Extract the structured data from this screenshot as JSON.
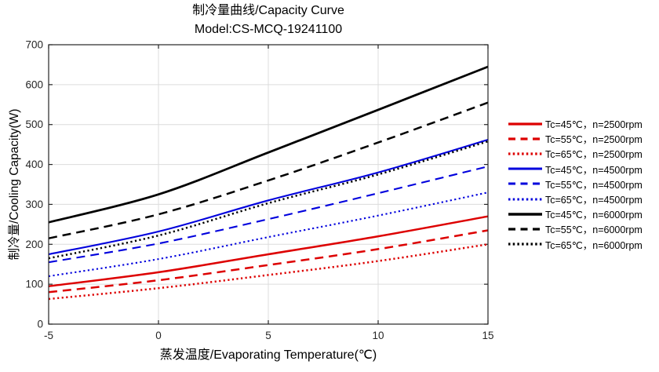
{
  "title": {
    "line1": "制冷量曲线/Capacity Curve",
    "line2": "Model:CS-MCQ-19241100"
  },
  "chart_data": {
    "type": "line",
    "title": "制冷量曲线/Capacity Curve",
    "subtitle": "Model:CS-MCQ-19241100",
    "xlabel": "蒸发温度/Evaporating Temperature(℃)",
    "ylabel": "制冷量/Cooling Capacity(W)",
    "x": [
      -5,
      0,
      5,
      10,
      15
    ],
    "xlim": [
      -5,
      15
    ],
    "ylim": [
      0,
      700
    ],
    "xticks": [
      -5,
      0,
      5,
      10,
      15
    ],
    "yticks": [
      0,
      100,
      200,
      300,
      400,
      500,
      600,
      700
    ],
    "grid": true,
    "legend_position": "right-outside",
    "axis_color": "#262626",
    "grid_color": "#dcdcdc",
    "background_color": "#ffffff",
    "series": [
      {
        "id": "tc45-n2500",
        "name": "Tc=45℃，n=2500rpm",
        "color": "#dd0000",
        "style": "solid",
        "width": 2.5,
        "values": [
          95,
          130,
          175,
          220,
          270
        ]
      },
      {
        "id": "tc55-n2500",
        "name": "Tc=55℃，n=2500rpm",
        "color": "#dd0000",
        "style": "dashed",
        "width": 2.5,
        "values": [
          80,
          110,
          148,
          188,
          235
        ]
      },
      {
        "id": "tc65-n2500",
        "name": "Tc=65℃，n=2500rpm",
        "color": "#dd0000",
        "style": "dotted",
        "width": 2.5,
        "values": [
          63,
          90,
          123,
          158,
          200
        ]
      },
      {
        "id": "tc45-n4500",
        "name": "Tc=45℃，n=4500rpm",
        "color": "#0000dd",
        "style": "solid",
        "width": 2.1,
        "values": [
          175,
          232,
          310,
          380,
          462
        ]
      },
      {
        "id": "tc55-n4500",
        "name": "Tc=55℃，n=4500rpm",
        "color": "#0000dd",
        "style": "dashed",
        "width": 2.1,
        "values": [
          155,
          202,
          263,
          328,
          395
        ]
      },
      {
        "id": "tc65-n4500",
        "name": "Tc=65℃，n=4500rpm",
        "color": "#0000dd",
        "style": "dotted",
        "width": 2.1,
        "values": [
          120,
          163,
          218,
          272,
          330
        ]
      },
      {
        "id": "tc45-n6000",
        "name": "Tc=45℃，n=6000rpm",
        "color": "#000000",
        "style": "solid",
        "width": 2.8,
        "values": [
          255,
          325,
          430,
          537,
          645
        ]
      },
      {
        "id": "tc55-n6000",
        "name": "Tc=55℃，n=6000rpm",
        "color": "#000000",
        "style": "dashed",
        "width": 2.5,
        "values": [
          215,
          275,
          360,
          455,
          555
        ]
      },
      {
        "id": "tc65-n6000",
        "name": "Tc=65℃，n=6000rpm",
        "color": "#000000",
        "style": "dotted",
        "width": 2.5,
        "values": [
          165,
          222,
          303,
          375,
          458
        ]
      }
    ]
  }
}
